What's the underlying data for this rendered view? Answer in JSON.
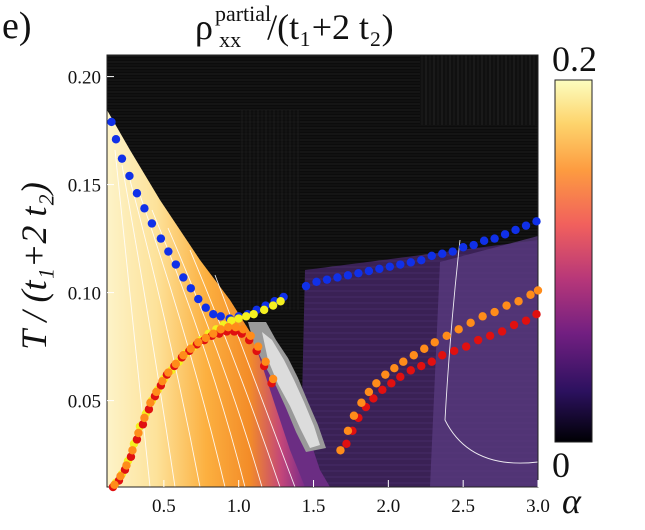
{
  "panel_label": "e)",
  "title": {
    "rho": "ρ",
    "sup": "partial",
    "sub": "xx",
    "rest": "/(t₁+2 t₂)"
  },
  "ylabel": "T / (t₁+2 t₂)",
  "xlabel": "α",
  "colorbar": {
    "max_label": "0.2",
    "min_label": "0",
    "range": [
      0,
      0.2
    ],
    "colors": [
      "#000004",
      "#2c115f",
      "#721f81",
      "#b73779",
      "#f1605d",
      "#fd9b40",
      "#fdd46c",
      "#fcfdbf"
    ]
  },
  "chart_data": {
    "type": "heatmap",
    "title": "ρ_xx^partial/(t₁+2 t₂)",
    "xlabel": "α",
    "ylabel": "T / (t₁+2 t₂)",
    "xlim": [
      0.12,
      3.0
    ],
    "ylim": [
      0.01,
      0.21
    ],
    "xticks": [
      "0.5",
      "1.0",
      "1.5",
      "2.0",
      "2.5",
      "3.0"
    ],
    "xtick_values": [
      0.5,
      1.0,
      1.5,
      2.0,
      2.5,
      3.0
    ],
    "yticks": [
      "0.05",
      "0.10",
      "0.15",
      "0.20"
    ],
    "ytick_values": [
      0.05,
      0.1,
      0.15,
      0.2
    ],
    "series": [
      {
        "name": "blue",
        "color": "#1030e8",
        "x": [
          0.15,
          0.18,
          0.22,
          0.27,
          0.32,
          0.37,
          0.42,
          0.48,
          0.53,
          0.58,
          0.63,
          0.68,
          0.73,
          0.78,
          0.83,
          0.88,
          0.94,
          1.0,
          1.06,
          1.12,
          1.18,
          1.24,
          1.3,
          1.45,
          1.52,
          1.59,
          1.66,
          1.73,
          1.8,
          1.87,
          1.94,
          2.01,
          2.08,
          2.15,
          2.22,
          2.29,
          2.36,
          2.43,
          2.5,
          2.57,
          2.64,
          2.71,
          2.78,
          2.85,
          2.92,
          2.99
        ],
        "y": [
          0.179,
          0.171,
          0.162,
          0.154,
          0.146,
          0.139,
          0.132,
          0.125,
          0.119,
          0.113,
          0.107,
          0.102,
          0.097,
          0.093,
          0.09,
          0.089,
          0.088,
          0.089,
          0.09,
          0.092,
          0.094,
          0.096,
          0.098,
          0.103,
          0.105,
          0.106,
          0.107,
          0.108,
          0.109,
          0.11,
          0.111,
          0.112,
          0.113,
          0.114,
          0.115,
          0.117,
          0.118,
          0.119,
          0.121,
          0.122,
          0.124,
          0.125,
          0.127,
          0.129,
          0.131,
          0.133
        ]
      },
      {
        "name": "yellow",
        "color": "#f5f020",
        "x": [
          0.18,
          0.22,
          0.26,
          0.3,
          0.34,
          0.38,
          0.42,
          0.46,
          0.5,
          0.55,
          0.6,
          0.65,
          0.7,
          0.75,
          0.8,
          0.85,
          0.9,
          0.95,
          1.0,
          1.05,
          1.1,
          1.17,
          1.23,
          1.28
        ],
        "y": [
          0.012,
          0.016,
          0.022,
          0.03,
          0.038,
          0.044,
          0.05,
          0.055,
          0.06,
          0.064,
          0.068,
          0.072,
          0.075,
          0.078,
          0.081,
          0.083,
          0.085,
          0.087,
          0.088,
          0.089,
          0.09,
          0.092,
          0.094,
          0.096
        ]
      },
      {
        "name": "red",
        "color": "#e01010",
        "x": [
          0.16,
          0.2,
          0.24,
          0.28,
          0.32,
          0.36,
          0.4,
          0.44,
          0.48,
          0.52,
          0.57,
          0.62,
          0.67,
          0.72,
          0.77,
          0.82,
          0.87,
          0.92,
          0.97,
          1.02,
          1.07,
          1.12,
          1.17,
          1.22,
          1.72,
          1.76,
          1.8,
          1.85,
          1.9,
          1.96,
          2.02,
          2.08,
          2.15,
          2.22,
          2.29,
          2.36,
          2.44,
          2.52,
          2.6,
          2.68,
          2.76,
          2.84,
          2.92,
          2.99
        ],
        "y": [
          0.01,
          0.013,
          0.018,
          0.024,
          0.032,
          0.039,
          0.046,
          0.052,
          0.057,
          0.062,
          0.066,
          0.07,
          0.073,
          0.076,
          0.078,
          0.08,
          0.081,
          0.082,
          0.082,
          0.081,
          0.078,
          0.073,
          0.066,
          0.058,
          0.03,
          0.036,
          0.042,
          0.047,
          0.051,
          0.055,
          0.058,
          0.061,
          0.064,
          0.066,
          0.068,
          0.071,
          0.073,
          0.075,
          0.078,
          0.08,
          0.082,
          0.085,
          0.087,
          0.09
        ]
      },
      {
        "name": "orange",
        "color": "#ff8c1a",
        "x": [
          0.17,
          0.21,
          0.25,
          0.29,
          0.33,
          0.37,
          0.41,
          0.45,
          0.49,
          0.53,
          0.58,
          0.63,
          0.68,
          0.73,
          0.78,
          0.83,
          0.88,
          0.93,
          0.98,
          1.03,
          1.08,
          1.13,
          1.18,
          1.23,
          1.68,
          1.73,
          1.77,
          1.82,
          1.87,
          1.92,
          1.98,
          2.04,
          2.1,
          2.17,
          2.24,
          2.31,
          2.39,
          2.47,
          2.55,
          2.63,
          2.71,
          2.79,
          2.87,
          2.95,
          3.0
        ],
        "y": [
          0.011,
          0.015,
          0.02,
          0.027,
          0.035,
          0.042,
          0.049,
          0.054,
          0.059,
          0.063,
          0.067,
          0.071,
          0.074,
          0.077,
          0.079,
          0.081,
          0.083,
          0.084,
          0.084,
          0.083,
          0.08,
          0.075,
          0.068,
          0.06,
          0.027,
          0.036,
          0.043,
          0.049,
          0.054,
          0.058,
          0.062,
          0.065,
          0.068,
          0.071,
          0.074,
          0.077,
          0.08,
          0.083,
          0.086,
          0.089,
          0.091,
          0.094,
          0.096,
          0.099,
          0.101
        ]
      }
    ]
  }
}
